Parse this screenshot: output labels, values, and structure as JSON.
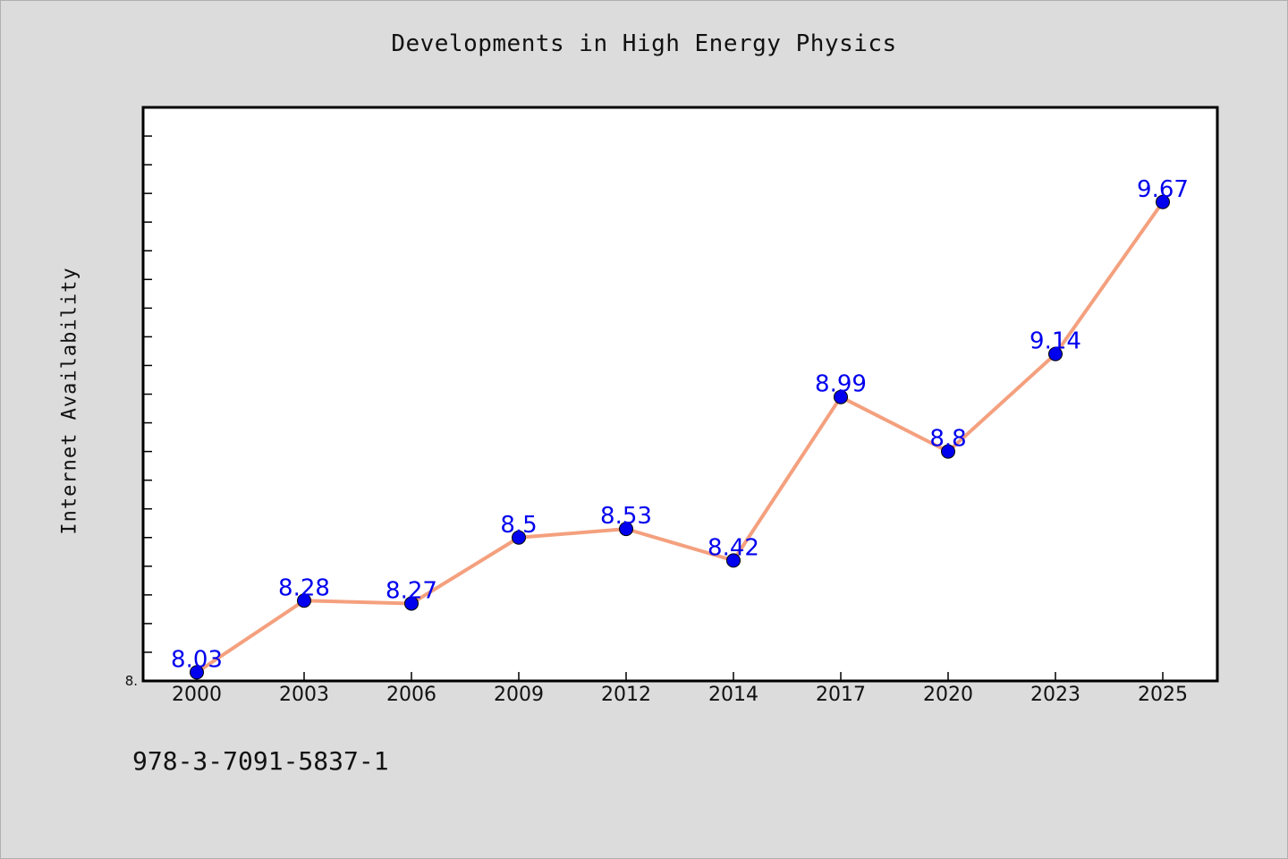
{
  "chart_data": {
    "type": "line",
    "title": "Developments in High Energy Physics",
    "xlabel": "",
    "ylabel": "Internet Availability",
    "categories": [
      "2000",
      "2003",
      "2006",
      "2009",
      "2012",
      "2014",
      "2017",
      "2020",
      "2023",
      "2025"
    ],
    "series": [
      {
        "values": [
          8.03,
          8.28,
          8.27,
          8.5,
          8.53,
          8.42,
          8.99,
          8.8,
          9.14,
          9.67
        ]
      }
    ],
    "ylim": [
      8.0,
      10.0
    ],
    "y_tick_labels": [
      "8."
    ],
    "grid": false,
    "line_color": "#f4a07e",
    "marker_color": "#0000ee",
    "label_color": "#0000ee"
  },
  "footer": {
    "isbn": "978-3-7091-5837-1"
  }
}
